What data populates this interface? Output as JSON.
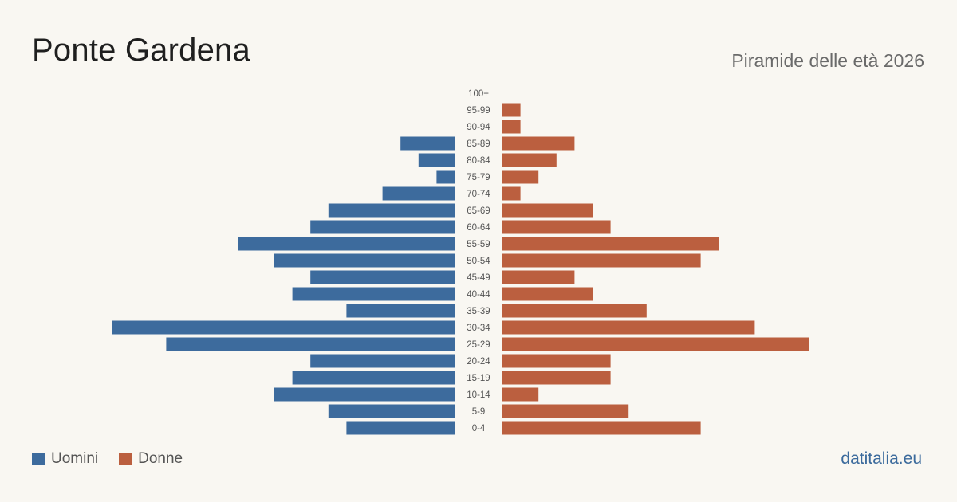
{
  "title": "Ponte Gardena",
  "subtitle": "Piramide delle età 2026",
  "source": "datitalia.eu",
  "colors": {
    "background": "#f9f7f2",
    "male": "#3d6b9d",
    "female": "#bb5f3f"
  },
  "legend": {
    "male": "Uomini",
    "female": "Donne"
  },
  "chart_data": {
    "type": "bar",
    "orientation": "horizontal-pyramid",
    "categories": [
      "100+",
      "95-99",
      "90-94",
      "85-89",
      "80-84",
      "75-79",
      "70-74",
      "65-69",
      "60-64",
      "55-59",
      "50-54",
      "45-49",
      "40-44",
      "35-39",
      "30-34",
      "25-29",
      "20-24",
      "15-19",
      "10-14",
      "5-9",
      "0-4"
    ],
    "series": [
      {
        "name": "Uomini",
        "values": [
          0,
          0,
          0,
          6,
          4,
          2,
          8,
          14,
          16,
          24,
          20,
          16,
          18,
          12,
          38,
          32,
          16,
          18,
          20,
          14,
          12
        ]
      },
      {
        "name": "Donne",
        "values": [
          0,
          2,
          2,
          8,
          6,
          4,
          2,
          10,
          12,
          24,
          22,
          8,
          10,
          16,
          28,
          34,
          12,
          12,
          4,
          14,
          22
        ]
      }
    ],
    "legend_position": "bottom-left",
    "grid": false
  }
}
